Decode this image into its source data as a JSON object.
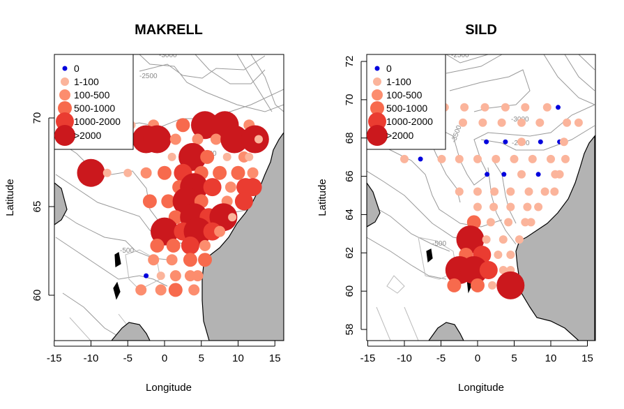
{
  "chart_data": [
    {
      "type": "scatter",
      "subtype": "bubble-map",
      "title": "MAKRELL",
      "xlabel": "Longitude",
      "ylabel": "Latitude",
      "xlim": [
        -15.3,
        16
      ],
      "ylim": [
        57.5,
        73.6
      ],
      "xticks": [
        -15,
        -10,
        -5,
        0,
        5,
        10,
        15
      ],
      "yticks": [
        60,
        65,
        70
      ],
      "legend": {
        "position": "top-left",
        "entries": [
          {
            "label": "0",
            "class": 0
          },
          {
            "label": "1-100",
            "class": 1
          },
          {
            "label": "100-500",
            "class": 2
          },
          {
            "label": "500-1000",
            "class": 3
          },
          {
            "label": "1000-2000",
            "class": 4
          },
          {
            "label": ">2000",
            "class": 5
          }
        ]
      },
      "contour_labels": [
        "-3000",
        "-2500",
        "-2000",
        "-500"
      ],
      "points": [
        {
          "lon": -4.5,
          "lat": 69.6,
          "class": 1
        },
        {
          "lon": -1.5,
          "lat": 69.6,
          "class": 2
        },
        {
          "lon": 2.5,
          "lat": 69.6,
          "class": 3
        },
        {
          "lon": 5.5,
          "lat": 69.6,
          "class": 5
        },
        {
          "lon": 8.2,
          "lat": 69.6,
          "class": 5
        },
        {
          "lon": 11.5,
          "lat": 69.6,
          "class": 2
        },
        {
          "lon": -6.5,
          "lat": 68.8,
          "class": 4
        },
        {
          "lon": -2.5,
          "lat": 68.8,
          "class": 5
        },
        {
          "lon": -1,
          "lat": 68.8,
          "class": 5
        },
        {
          "lon": 1.5,
          "lat": 68.8,
          "class": 2
        },
        {
          "lon": 4.5,
          "lat": 68.8,
          "class": 2
        },
        {
          "lon": 7,
          "lat": 68.8,
          "class": 2
        },
        {
          "lon": 9.5,
          "lat": 68.8,
          "class": 5
        },
        {
          "lon": 12.3,
          "lat": 68.8,
          "class": 5
        },
        {
          "lon": 12.8,
          "lat": 68.8,
          "class": 1
        },
        {
          "lon": 1,
          "lat": 67.8,
          "class": 1
        },
        {
          "lon": 3.8,
          "lat": 67.8,
          "class": 5
        },
        {
          "lon": 5.8,
          "lat": 67.8,
          "class": 3
        },
        {
          "lon": 8.5,
          "lat": 67.8,
          "class": 1
        },
        {
          "lon": 10.8,
          "lat": 67.8,
          "class": 2
        },
        {
          "lon": 11.5,
          "lat": 67.8,
          "class": 1
        },
        {
          "lon": -10,
          "lat": 66.9,
          "class": 5
        },
        {
          "lon": -7.8,
          "lat": 66.9,
          "class": 1
        },
        {
          "lon": -5,
          "lat": 66.9,
          "class": 1
        },
        {
          "lon": -2.5,
          "lat": 66.9,
          "class": 2
        },
        {
          "lon": 0,
          "lat": 66.9,
          "class": 3
        },
        {
          "lon": 2.5,
          "lat": 66.9,
          "class": 4
        },
        {
          "lon": 5,
          "lat": 66.9,
          "class": 3
        },
        {
          "lon": 7.5,
          "lat": 66.9,
          "class": 3
        },
        {
          "lon": 10,
          "lat": 66.9,
          "class": 3
        },
        {
          "lon": 12,
          "lat": 66.9,
          "class": 2
        },
        {
          "lon": 2,
          "lat": 66.1,
          "class": 3
        },
        {
          "lon": 4,
          "lat": 66.1,
          "class": 5
        },
        {
          "lon": 6.5,
          "lat": 66.1,
          "class": 4
        },
        {
          "lon": 9,
          "lat": 66.1,
          "class": 2
        },
        {
          "lon": 11,
          "lat": 66.1,
          "class": 4
        },
        {
          "lon": 12,
          "lat": 66.1,
          "class": 4
        },
        {
          "lon": -2,
          "lat": 65.3,
          "class": 3
        },
        {
          "lon": 0.5,
          "lat": 65.3,
          "class": 3
        },
        {
          "lon": 3,
          "lat": 65.3,
          "class": 5
        },
        {
          "lon": 5,
          "lat": 65.3,
          "class": 3
        },
        {
          "lon": 8.5,
          "lat": 65.3,
          "class": 2
        },
        {
          "lon": 10.8,
          "lat": 65.3,
          "class": 4
        },
        {
          "lon": 1.5,
          "lat": 64.4,
          "class": 3
        },
        {
          "lon": 4,
          "lat": 64.4,
          "class": 5
        },
        {
          "lon": 6,
          "lat": 64.4,
          "class": 4
        },
        {
          "lon": 8,
          "lat": 64.4,
          "class": 5
        },
        {
          "lon": 9.2,
          "lat": 64.4,
          "class": 1
        },
        {
          "lon": 0,
          "lat": 63.6,
          "class": 5
        },
        {
          "lon": 2.5,
          "lat": 63.6,
          "class": 4
        },
        {
          "lon": 4.5,
          "lat": 63.6,
          "class": 5
        },
        {
          "lon": 6.5,
          "lat": 63.6,
          "class": 4
        },
        {
          "lon": 7.5,
          "lat": 63.6,
          "class": 2
        },
        {
          "lon": -1,
          "lat": 62.8,
          "class": 3
        },
        {
          "lon": 1.2,
          "lat": 62.8,
          "class": 3
        },
        {
          "lon": 3.5,
          "lat": 62.8,
          "class": 4
        },
        {
          "lon": 5.5,
          "lat": 62.8,
          "class": 2
        },
        {
          "lon": -1.5,
          "lat": 62,
          "class": 2
        },
        {
          "lon": 1,
          "lat": 62,
          "class": 2
        },
        {
          "lon": 3.5,
          "lat": 62,
          "class": 3
        },
        {
          "lon": 5.5,
          "lat": 62,
          "class": 3
        },
        {
          "lon": -2.5,
          "lat": 61.1,
          "class": 0
        },
        {
          "lon": -0.5,
          "lat": 61.1,
          "class": 1
        },
        {
          "lon": 1.5,
          "lat": 61.1,
          "class": 2
        },
        {
          "lon": 3.5,
          "lat": 61.1,
          "class": 2
        },
        {
          "lon": 4.5,
          "lat": 61.1,
          "class": 2
        },
        {
          "lon": -3.2,
          "lat": 60.3,
          "class": 2
        },
        {
          "lon": -0.5,
          "lat": 60.3,
          "class": 2
        },
        {
          "lon": 1.5,
          "lat": 60.3,
          "class": 3
        },
        {
          "lon": 4,
          "lat": 60.3,
          "class": 2
        }
      ]
    },
    {
      "type": "scatter",
      "subtype": "bubble-map",
      "title": "SILD",
      "xlabel": "Longitude",
      "ylabel": "Latitude",
      "xlim": [
        -15.3,
        16
      ],
      "ylim": [
        57.4,
        72.4
      ],
      "xticks": [
        -15,
        -10,
        -5,
        0,
        5,
        10,
        15
      ],
      "yticks": [
        58,
        60,
        62,
        64,
        66,
        68,
        70,
        72
      ],
      "legend": {
        "position": "top-left",
        "entries": [
          {
            "label": "0",
            "class": 0
          },
          {
            "label": "1-100",
            "class": 1
          },
          {
            "label": "100-500",
            "class": 2
          },
          {
            "label": "500-1000",
            "class": 3
          },
          {
            "label": "1000-2000",
            "class": 4
          },
          {
            "label": ">2000",
            "class": 5
          }
        ]
      },
      "contour_labels": [
        "-2500",
        "-3000",
        "-3500",
        "-2000",
        "-500"
      ],
      "points": [
        {
          "lon": -4.5,
          "lat": 69.6,
          "class": 1
        },
        {
          "lon": -1.8,
          "lat": 69.6,
          "class": 1
        },
        {
          "lon": 1,
          "lat": 69.6,
          "class": 1
        },
        {
          "lon": 3.8,
          "lat": 69.6,
          "class": 1
        },
        {
          "lon": 6.5,
          "lat": 69.6,
          "class": 1
        },
        {
          "lon": 9.5,
          "lat": 69.6,
          "class": 1
        },
        {
          "lon": 11,
          "lat": 69.6,
          "class": 0
        },
        {
          "lon": -7.5,
          "lat": 68.8,
          "class": 1
        },
        {
          "lon": -5,
          "lat": 68.8,
          "class": 1
        },
        {
          "lon": -2,
          "lat": 68.8,
          "class": 1
        },
        {
          "lon": 0.7,
          "lat": 68.8,
          "class": 1
        },
        {
          "lon": 3.3,
          "lat": 68.8,
          "class": 1
        },
        {
          "lon": 6,
          "lat": 68.8,
          "class": 1
        },
        {
          "lon": 8.5,
          "lat": 68.8,
          "class": 1
        },
        {
          "lon": 12.2,
          "lat": 68.8,
          "class": 1
        },
        {
          "lon": 13.8,
          "lat": 68.8,
          "class": 1
        },
        {
          "lon": 1.2,
          "lat": 67.8,
          "class": 0
        },
        {
          "lon": 3.8,
          "lat": 67.8,
          "class": 0
        },
        {
          "lon": 6,
          "lat": 67.8,
          "class": 1
        },
        {
          "lon": 8.6,
          "lat": 67.8,
          "class": 0
        },
        {
          "lon": 11.2,
          "lat": 67.8,
          "class": 0
        },
        {
          "lon": 11.8,
          "lat": 67.8,
          "class": 1
        },
        {
          "lon": -10,
          "lat": 66.9,
          "class": 1
        },
        {
          "lon": -7.8,
          "lat": 66.9,
          "class": 0
        },
        {
          "lon": -4.9,
          "lat": 66.9,
          "class": 1
        },
        {
          "lon": -2.5,
          "lat": 66.9,
          "class": 1
        },
        {
          "lon": 0,
          "lat": 66.9,
          "class": 1
        },
        {
          "lon": 2.5,
          "lat": 66.9,
          "class": 1
        },
        {
          "lon": 5,
          "lat": 66.9,
          "class": 1
        },
        {
          "lon": 7.5,
          "lat": 66.9,
          "class": 1
        },
        {
          "lon": 10,
          "lat": 66.9,
          "class": 1
        },
        {
          "lon": 12,
          "lat": 66.9,
          "class": 1
        },
        {
          "lon": 1.3,
          "lat": 66.1,
          "class": 0
        },
        {
          "lon": 3.6,
          "lat": 66.1,
          "class": 0
        },
        {
          "lon": 6,
          "lat": 66.1,
          "class": 1
        },
        {
          "lon": 8.3,
          "lat": 66.1,
          "class": 0
        },
        {
          "lon": 10.6,
          "lat": 66.1,
          "class": 1
        },
        {
          "lon": 11.2,
          "lat": 66.1,
          "class": 1
        },
        {
          "lon": -2.5,
          "lat": 65.2,
          "class": 1
        },
        {
          "lon": 0,
          "lat": 65.2,
          "class": 1
        },
        {
          "lon": 2.3,
          "lat": 65.2,
          "class": 1
        },
        {
          "lon": 4.5,
          "lat": 65.2,
          "class": 1
        },
        {
          "lon": 7,
          "lat": 65.2,
          "class": 1
        },
        {
          "lon": 9.2,
          "lat": 65.2,
          "class": 1
        },
        {
          "lon": 10.5,
          "lat": 65.2,
          "class": 1
        },
        {
          "lon": 0,
          "lat": 64.4,
          "class": 1
        },
        {
          "lon": 2.2,
          "lat": 64.4,
          "class": 1
        },
        {
          "lon": 4.5,
          "lat": 64.4,
          "class": 1
        },
        {
          "lon": 6.8,
          "lat": 64.4,
          "class": 1
        },
        {
          "lon": 8.3,
          "lat": 64.4,
          "class": 1
        },
        {
          "lon": -0.5,
          "lat": 63.6,
          "class": 3
        },
        {
          "lon": 1.8,
          "lat": 63.6,
          "class": 1
        },
        {
          "lon": 4.2,
          "lat": 63.6,
          "class": 1
        },
        {
          "lon": 6.5,
          "lat": 63.6,
          "class": 1
        },
        {
          "lon": 7.3,
          "lat": 63.6,
          "class": 1
        },
        {
          "lon": -1,
          "lat": 62.7,
          "class": 5
        },
        {
          "lon": 1.2,
          "lat": 62.7,
          "class": 1
        },
        {
          "lon": 3.5,
          "lat": 62.7,
          "class": 1
        },
        {
          "lon": 5.7,
          "lat": 62.7,
          "class": 1
        },
        {
          "lon": -1.6,
          "lat": 61.9,
          "class": 3
        },
        {
          "lon": 0.6,
          "lat": 61.9,
          "class": 4
        },
        {
          "lon": 2.8,
          "lat": 61.9,
          "class": 1
        },
        {
          "lon": 4.5,
          "lat": 61.9,
          "class": 1
        },
        {
          "lon": -2.5,
          "lat": 61.1,
          "class": 5
        },
        {
          "lon": -0.5,
          "lat": 61.1,
          "class": 5
        },
        {
          "lon": 1.5,
          "lat": 61.1,
          "class": 4
        },
        {
          "lon": 3.5,
          "lat": 61.1,
          "class": 1
        },
        {
          "lon": 4.5,
          "lat": 61.1,
          "class": 1
        },
        {
          "lon": -3.2,
          "lat": 60.3,
          "class": 3
        },
        {
          "lon": 0,
          "lat": 60.3,
          "class": 3
        },
        {
          "lon": 2,
          "lat": 60.3,
          "class": 1
        },
        {
          "lon": 4.5,
          "lat": 60.3,
          "class": 5
        }
      ]
    }
  ],
  "class_colors": [
    "#0000dd",
    "#fbb49b",
    "#fc8d6e",
    "#f76a4d",
    "#ea3c31",
    "#cb181d"
  ]
}
